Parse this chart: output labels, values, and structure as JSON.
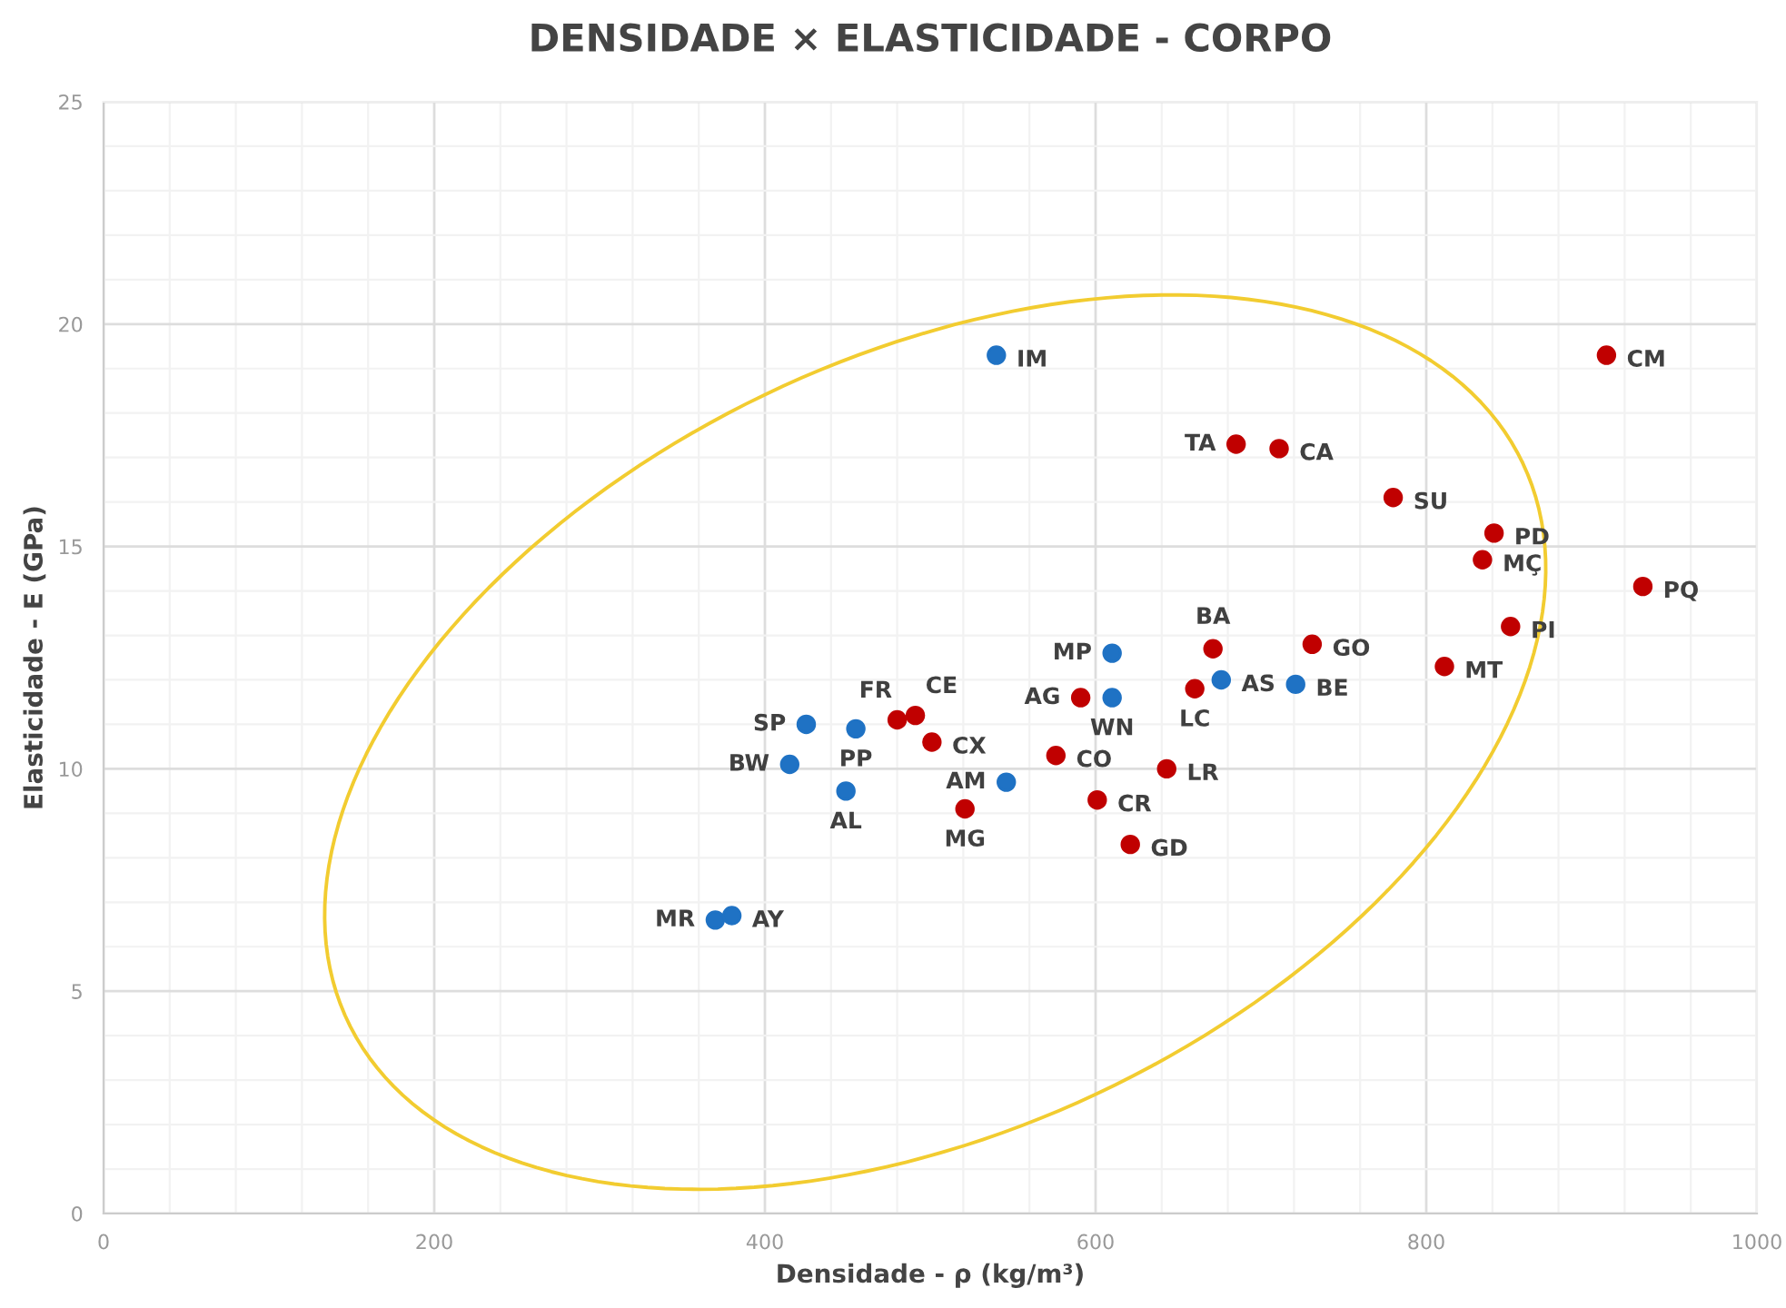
{
  "chart_data": {
    "type": "scatter",
    "title": "DENSIDADE × ELASTICIDADE - CORPO",
    "xlabel": "Densidade - ρ (kg/m³)",
    "ylabel": "Elasticidade - E (GPa)",
    "xlim": [
      0,
      1000
    ],
    "ylim": [
      0,
      25
    ],
    "xticks": [
      0,
      200,
      400,
      600,
      800,
      1000
    ],
    "yticks": [
      0,
      5,
      10,
      15,
      20,
      25
    ],
    "grid": true,
    "legend": false,
    "marker": "circle",
    "series": [
      {
        "color": "#1f72c4",
        "x": [
          540,
          610,
          610,
          676,
          721,
          425,
          455,
          415,
          449,
          546,
          370,
          380
        ],
        "values": [
          19.3,
          12.6,
          11.6,
          12.0,
          11.9,
          11.0,
          10.9,
          10.1,
          9.5,
          9.7,
          6.6,
          6.7
        ]
      },
      {
        "color": "#c00000",
        "x": [
          909,
          685,
          711,
          780,
          841,
          834,
          931,
          851,
          811,
          731,
          671,
          660,
          591,
          576,
          643,
          601,
          621,
          521,
          480,
          491,
          501
        ],
        "values": [
          19.3,
          17.3,
          17.2,
          16.1,
          15.3,
          14.7,
          14.1,
          13.2,
          12.3,
          12.8,
          12.7,
          11.8,
          11.6,
          10.3,
          10.0,
          9.3,
          8.3,
          9.1,
          11.1,
          11.2,
          10.6
        ]
      }
    ],
    "annotations": [
      {
        "text": "IM",
        "x": 540,
        "y": 19.3
      },
      {
        "text": "MP",
        "x": 610,
        "y": 12.6
      },
      {
        "text": "WN",
        "x": 610,
        "y": 11.6
      },
      {
        "text": "AS",
        "x": 676,
        "y": 12.0
      },
      {
        "text": "BE",
        "x": 721,
        "y": 11.9
      },
      {
        "text": "SP",
        "x": 425,
        "y": 11.0
      },
      {
        "text": "PP",
        "x": 455,
        "y": 10.9
      },
      {
        "text": "BW",
        "x": 415,
        "y": 10.1
      },
      {
        "text": "AL",
        "x": 449,
        "y": 9.5
      },
      {
        "text": "AM",
        "x": 546,
        "y": 9.7
      },
      {
        "text": "MR",
        "x": 370,
        "y": 6.6
      },
      {
        "text": "AY",
        "x": 380,
        "y": 6.7
      },
      {
        "text": "CM",
        "x": 909,
        "y": 19.3
      },
      {
        "text": "TA",
        "x": 685,
        "y": 17.3
      },
      {
        "text": "CA",
        "x": 711,
        "y": 17.2
      },
      {
        "text": "SU",
        "x": 780,
        "y": 16.1
      },
      {
        "text": "PD",
        "x": 841,
        "y": 15.3
      },
      {
        "text": "MÇ",
        "x": 834,
        "y": 14.7
      },
      {
        "text": "PQ",
        "x": 931,
        "y": 14.1
      },
      {
        "text": "PI",
        "x": 851,
        "y": 13.2
      },
      {
        "text": "MT",
        "x": 811,
        "y": 12.3
      },
      {
        "text": "GO",
        "x": 731,
        "y": 12.8
      },
      {
        "text": "BA",
        "x": 671,
        "y": 12.7
      },
      {
        "text": "LC",
        "x": 660,
        "y": 11.8
      },
      {
        "text": "AG",
        "x": 591,
        "y": 11.6
      },
      {
        "text": "CO",
        "x": 576,
        "y": 10.3
      },
      {
        "text": "LR",
        "x": 643,
        "y": 10.0
      },
      {
        "text": "CR",
        "x": 601,
        "y": 9.3
      },
      {
        "text": "GD",
        "x": 621,
        "y": 8.3
      },
      {
        "text": "MG",
        "x": 521,
        "y": 9.1
      },
      {
        "text": "FR",
        "x": 480,
        "y": 11.1
      },
      {
        "text": "CE",
        "x": 491,
        "y": 11.2
      },
      {
        "text": "CX",
        "x": 501,
        "y": 10.6
      }
    ]
  }
}
